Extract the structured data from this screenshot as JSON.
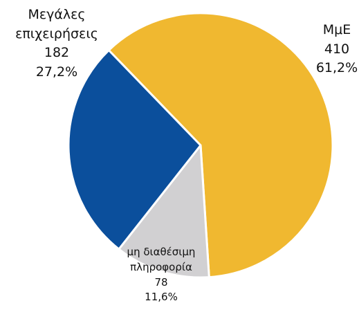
{
  "chart_data": {
    "type": "pie",
    "categories": [
      "ΜμΕ",
      "μη διαθέσιμη πληροφορία",
      "Μεγάλες επιχειρήσεις"
    ],
    "values": [
      410,
      78,
      182
    ],
    "value_labels": [
      "61,2%",
      "11,6%",
      "27,2%"
    ],
    "colors": [
      "#f0b830",
      "#d1d0d2",
      "#0b4f9c"
    ]
  }
}
